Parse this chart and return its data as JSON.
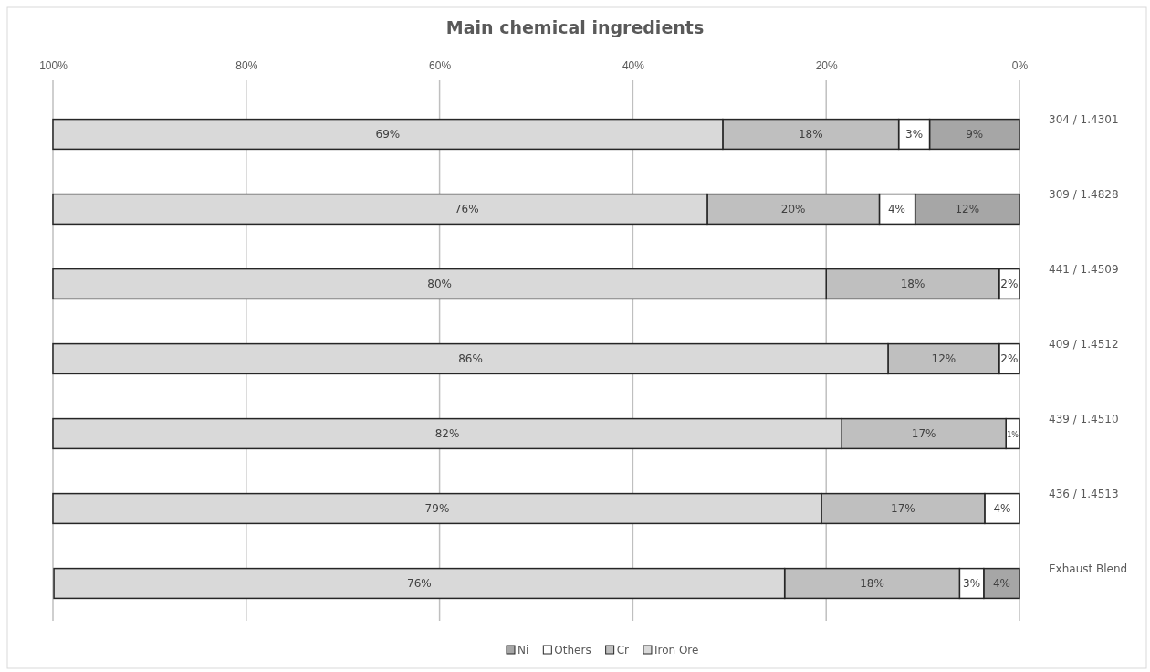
{
  "chart_data": {
    "type": "bar",
    "orientation": "horizontal",
    "stacked": true,
    "title": "Main chemical ingredients",
    "categories": [
      "304 / 1.4301",
      "309 / 1.4828",
      "441 / 1.4509",
      "409 / 1.4512",
      "439 / 1.4510",
      "436 / 1.4513",
      "Exhaust Blend"
    ],
    "xlim": [
      100,
      0
    ],
    "xticks": [
      {
        "value": 100,
        "label": "100%"
      },
      {
        "value": 80,
        "label": "80%"
      },
      {
        "value": 60,
        "label": "60%"
      },
      {
        "value": 40,
        "label": "40%"
      },
      {
        "value": 20,
        "label": "20%"
      },
      {
        "value": 0,
        "label": "0%"
      }
    ],
    "grid": "x",
    "legend": "bottom",
    "series": [
      {
        "name": "Ni",
        "color": "#a6a6a6",
        "values": [
          9.3,
          10.8,
          null,
          null,
          null,
          null,
          3.7
        ],
        "value_labels": [
          "9%",
          null,
          null,
          null,
          null,
          null,
          "4%"
        ]
      },
      {
        "name": "Others",
        "color": "#ffffff",
        "values": [
          3.2,
          3.7,
          2.1,
          2.1,
          1.4,
          3.6,
          2.5
        ],
        "value_labels": [
          "3%",
          null,
          "2%",
          "2%",
          "1%",
          "4%",
          "3%"
        ]
      },
      {
        "name": "Cr",
        "color": "#bfbfbf",
        "values": [
          18.2,
          17.8,
          17.9,
          11.5,
          17.0,
          16.9,
          18.1
        ],
        "value_labels": [
          "18%",
          null,
          "18%",
          "12%",
          "17%",
          "17%",
          "18%"
        ]
      },
      {
        "name": "Iron Ore",
        "color": "#d9d9d9",
        "values": [
          69.3,
          67.7,
          80.0,
          86.4,
          81.6,
          79.5,
          75.6
        ],
        "value_labels": [
          "69%",
          null,
          "80%",
          "86%",
          "82%",
          "79%",
          "76%"
        ]
      }
    ],
    "annotations": [
      {
        "text": "12%",
        "x": 5.4,
        "y": "309 / 1.4828"
      },
      {
        "text": "4%",
        "x": 12.7,
        "y": "309 / 1.4828"
      },
      {
        "text": "20%",
        "x": 23.4,
        "y": "309 / 1.4828"
      },
      {
        "text": "76%",
        "x": 57.2,
        "y": "309 / 1.4828"
      }
    ]
  }
}
